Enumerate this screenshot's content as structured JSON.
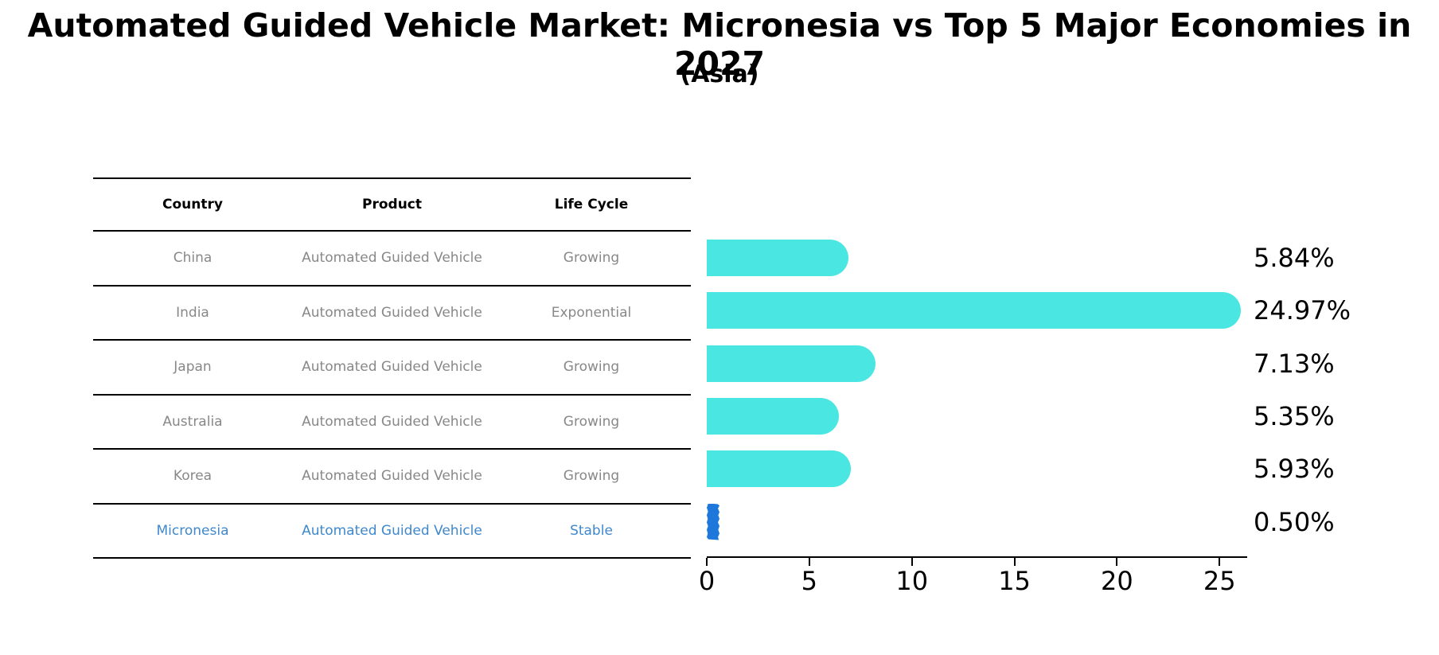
{
  "title": "Automated Guided Vehicle Market: Micronesia vs Top 5 Major Economies in 2027",
  "subtitle": "(Asia)",
  "table": {
    "headers": [
      "Country",
      "Product",
      "Life Cycle"
    ],
    "rows": [
      {
        "country": "China",
        "product": "Automated Guided Vehicle",
        "life_cycle": "Growing",
        "highlight": false
      },
      {
        "country": "India",
        "product": "Automated Guided Vehicle",
        "life_cycle": "Exponential",
        "highlight": false
      },
      {
        "country": "Japan",
        "product": "Automated Guided Vehicle",
        "life_cycle": "Growing",
        "highlight": false
      },
      {
        "country": "Australia",
        "product": "Automated Guided Vehicle",
        "life_cycle": "Growing",
        "highlight": false
      },
      {
        "country": "Korea",
        "product": "Automated Guided Vehicle",
        "life_cycle": "Growing",
        "highlight": false
      },
      {
        "country": "Micronesia",
        "product": "Automated Guided Vehicle",
        "life_cycle": "Stable",
        "highlight": true
      }
    ]
  },
  "chart_data": {
    "type": "bar",
    "orientation": "horizontal",
    "title": "Automated Guided Vehicle Market: Micronesia vs Top 5 Major Economies in 2027 (Asia)",
    "categories": [
      "China",
      "India",
      "Japan",
      "Australia",
      "Korea",
      "Micronesia"
    ],
    "values": [
      5.84,
      24.97,
      7.13,
      5.35,
      5.93,
      0.5
    ],
    "value_labels": [
      "5.84%",
      "24.97%",
      "7.13%",
      "5.35%",
      "5.93%",
      "0.50%"
    ],
    "x_ticks": [
      "0",
      "5",
      "10",
      "15",
      "20",
      "25"
    ],
    "xlim": [
      0,
      26.3
    ],
    "grid": false,
    "legend": "none",
    "colors": {
      "bar": "#4ae6e2",
      "highlight_bar": "#1e78dc",
      "highlight_text": "#3f88cc",
      "row_text": "#888888",
      "axis": "#000000"
    }
  }
}
